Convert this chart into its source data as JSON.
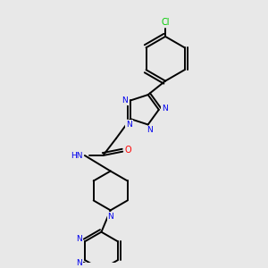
{
  "bg_color": "#e8e8e8",
  "bond_color": "#000000",
  "n_color": "#0000ee",
  "o_color": "#ff0000",
  "cl_color": "#00cc00",
  "figsize": [
    3.0,
    3.0
  ],
  "dpi": 100,
  "xlim": [
    0,
    10
  ],
  "ylim": [
    0,
    10
  ]
}
